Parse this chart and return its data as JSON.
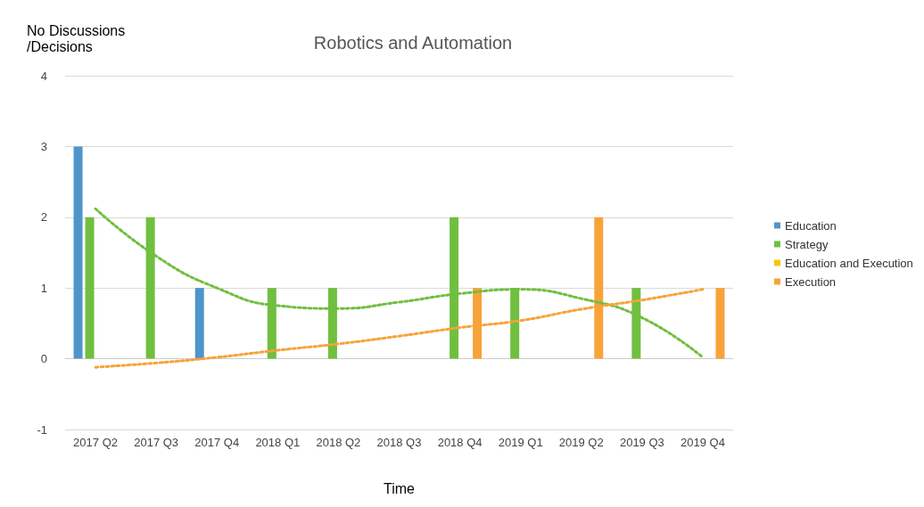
{
  "chart_data": {
    "type": "bar",
    "title": "Robotics and Automation",
    "xlabel": "Time",
    "ylabel": "No Discussions\n/Decisions",
    "categories": [
      "2017 Q2",
      "2017 Q3",
      "2017 Q4",
      "2018 Q1",
      "2018 Q2",
      "2018 Q3",
      "2018 Q4",
      "2019 Q1",
      "2019 Q2",
      "2019 Q3",
      "2019 Q4"
    ],
    "series": [
      {
        "name": "Education",
        "color": "#4e95cb",
        "values": [
          3,
          null,
          1,
          null,
          null,
          null,
          null,
          null,
          null,
          null,
          null
        ]
      },
      {
        "name": "Strategy",
        "color": "#70bf3f",
        "values": [
          2,
          2,
          null,
          1,
          1,
          null,
          2,
          1,
          null,
          1,
          null
        ]
      },
      {
        "name": "Education and Execution",
        "color": "#f5c518",
        "values": [
          null,
          null,
          null,
          null,
          null,
          null,
          null,
          null,
          null,
          null,
          null
        ]
      },
      {
        "name": "Execution",
        "color": "#f7a33a",
        "values": [
          null,
          null,
          null,
          null,
          null,
          null,
          1,
          null,
          2,
          null,
          1
        ]
      },
      {
        "type": "line",
        "color": "#70bf3f",
        "line_style": "dotted",
        "marker": "none",
        "values": [
          2.12,
          1.45,
          1.0,
          0.75,
          0.71,
          0.8,
          0.92,
          0.98,
          0.85,
          0.58,
          0.02
        ]
      },
      {
        "type": "line",
        "color": "#f7a33a",
        "line_style": "dotted",
        "marker": "none",
        "values": [
          -0.12,
          -0.06,
          0.02,
          0.12,
          0.21,
          0.32,
          0.44,
          0.54,
          0.7,
          0.83,
          0.98
        ]
      }
    ],
    "ylim": [
      -1,
      4
    ],
    "yticks": [
      -1,
      0,
      1,
      2,
      3,
      4
    ],
    "grid": "y",
    "legend": "right"
  }
}
